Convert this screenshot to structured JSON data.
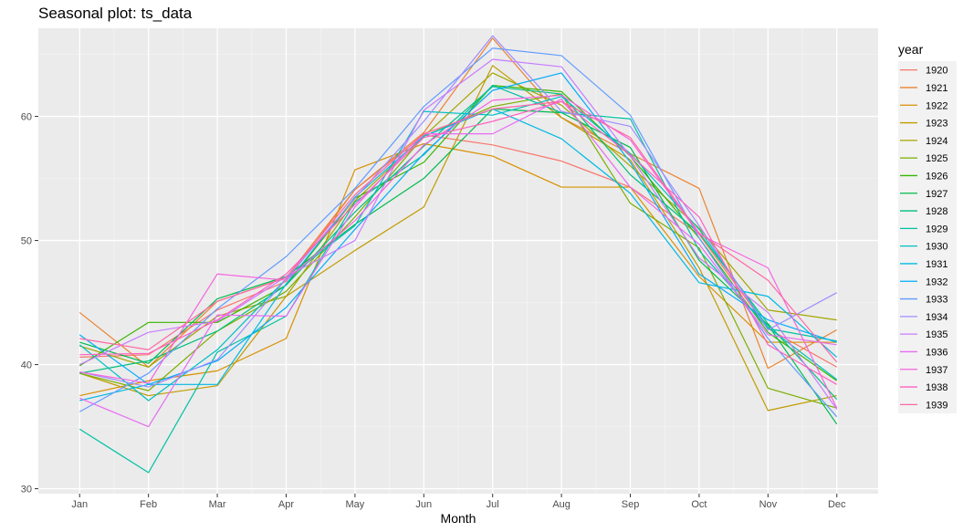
{
  "chart_data": {
    "type": "line",
    "title": "Seasonal plot: ts_data",
    "xlabel": "Month",
    "ylabel": "",
    "categories": [
      "Jan",
      "Feb",
      "Mar",
      "Apr",
      "May",
      "Jun",
      "Jul",
      "Aug",
      "Sep",
      "Oct",
      "Nov",
      "Dec"
    ],
    "ylim": [
      29.6,
      67.1
    ],
    "yticks": [
      30,
      40,
      50,
      60
    ],
    "grid": true,
    "legend": {
      "title": "year",
      "placement": "right"
    },
    "series": [
      {
        "name": "1920",
        "color": "#F8766D",
        "values": [
          40.6,
          40.8,
          44.4,
          46.7,
          54.1,
          58.5,
          57.7,
          56.4,
          54.3,
          50.5,
          42.9,
          39.8
        ]
      },
      {
        "name": "1921",
        "color": "#EA8331",
        "values": [
          44.2,
          39.8,
          45.1,
          47.0,
          54.1,
          58.7,
          66.3,
          59.9,
          57.0,
          54.2,
          39.7,
          42.8
        ]
      },
      {
        "name": "1922",
        "color": "#D89000",
        "values": [
          37.5,
          38.7,
          39.5,
          42.1,
          55.7,
          57.8,
          56.8,
          54.3,
          54.3,
          47.1,
          41.8,
          41.8
        ]
      },
      {
        "name": "1923",
        "color": "#C09B00",
        "values": [
          39.3,
          37.5,
          38.3,
          45.5,
          49.2,
          52.7,
          64.1,
          59.9,
          56.5,
          47.8,
          36.3,
          37.5
        ]
      },
      {
        "name": "1924",
        "color": "#A3A500",
        "values": [
          41.5,
          39.8,
          43.9,
          45.5,
          53.2,
          58.4,
          63.5,
          60.9,
          56.0,
          51.0,
          44.4,
          43.6
        ]
      },
      {
        "name": "1925",
        "color": "#7CAE00",
        "values": [
          39.3,
          37.9,
          42.7,
          45.9,
          51.9,
          58.4,
          60.8,
          61.8,
          53.0,
          49.4,
          38.1,
          36.5
        ]
      },
      {
        "name": "1926",
        "color": "#39B600",
        "values": [
          39.9,
          43.4,
          43.4,
          46.4,
          53.4,
          56.3,
          62.5,
          62.0,
          56.8,
          50.2,
          42.6,
          38.7
        ]
      },
      {
        "name": "1927",
        "color": "#00BB4E",
        "values": [
          41.8,
          40.1,
          45.3,
          47.1,
          51.3,
          55.0,
          60.6,
          60.3,
          57.5,
          48.4,
          43.2,
          35.2
        ]
      },
      {
        "name": "1928",
        "color": "#00BF7D",
        "values": [
          39.3,
          40.3,
          42.7,
          46.4,
          52.3,
          57.6,
          62.4,
          61.8,
          55.3,
          50.6,
          43.3,
          37.2
        ]
      },
      {
        "name": "1929",
        "color": "#00C1A3",
        "values": [
          34.8,
          31.3,
          41.0,
          43.9,
          53.1,
          56.9,
          62.5,
          60.3,
          59.8,
          49.2,
          42.9,
          41.9
        ]
      },
      {
        "name": "1930",
        "color": "#00BFC4",
        "values": [
          41.6,
          37.1,
          41.2,
          46.9,
          51.2,
          60.4,
          60.1,
          61.6,
          57.0,
          50.9,
          43.0,
          38.8
        ]
      },
      {
        "name": "1931",
        "color": "#00B9E3",
        "values": [
          37.1,
          38.4,
          38.4,
          46.5,
          53.5,
          58.4,
          60.6,
          58.2,
          53.8,
          46.6,
          45.5,
          40.6
        ]
      },
      {
        "name": "1932",
        "color": "#00ADFA",
        "values": [
          42.4,
          38.4,
          40.3,
          44.6,
          50.9,
          57.0,
          62.1,
          63.5,
          56.3,
          47.3,
          43.6,
          41.8
        ]
      },
      {
        "name": "1933",
        "color": "#619CFF",
        "values": [
          36.2,
          39.3,
          44.5,
          48.7,
          54.2,
          60.8,
          65.5,
          64.9,
          60.1,
          50.2,
          42.1,
          35.8
        ]
      },
      {
        "name": "1934",
        "color": "#9F8CFF",
        "values": [
          39.4,
          38.2,
          40.4,
          46.9,
          53.4,
          59.6,
          66.5,
          60.4,
          59.2,
          51.2,
          42.8,
          45.8
        ]
      },
      {
        "name": "1935",
        "color": "#C77CFF",
        "values": [
          40.0,
          42.6,
          43.5,
          47.1,
          50.0,
          60.5,
          64.6,
          64.0,
          56.8,
          48.6,
          44.2,
          36.4
        ]
      },
      {
        "name": "1936",
        "color": "#E76BF3",
        "values": [
          37.3,
          35.0,
          44.0,
          43.9,
          52.7,
          58.6,
          58.6,
          61.4,
          54.3,
          49.7,
          42.4,
          41.6
        ]
      },
      {
        "name": "1937",
        "color": "#F763E0",
        "values": [
          39.4,
          38.5,
          47.3,
          46.8,
          51.6,
          57.7,
          61.3,
          61.7,
          58.1,
          50.5,
          47.8,
          36.5
        ]
      },
      {
        "name": "1938",
        "color": "#FF61C3",
        "values": [
          40.8,
          40.9,
          43.6,
          47.3,
          52.9,
          58.3,
          59.6,
          61.2,
          56.9,
          51.9,
          41.6,
          38.4
        ]
      },
      {
        "name": "1939",
        "color": "#FF67A4",
        "values": [
          42.1,
          41.2,
          45.1,
          47.0,
          53.7,
          58.6,
          60.6,
          61.2,
          58.3,
          50.6,
          46.8,
          40.2
        ]
      }
    ]
  }
}
